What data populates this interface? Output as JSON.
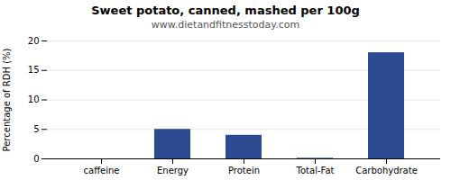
{
  "chart_data": {
    "type": "bar",
    "title": "Sweet potato, canned, mashed per 100g",
    "subtitle": "www.dietandfitnesstoday.com",
    "categories": [
      "caffeine",
      "Energy",
      "Protein",
      "Total-Fat",
      "Carbohydrate"
    ],
    "values": [
      0,
      5,
      4,
      0.1,
      18
    ],
    "color": "#2b4a8f",
    "ylabel": "Percentage of RDH (%)",
    "ylim": [
      0,
      20
    ],
    "yticks": [
      0,
      5,
      10,
      15,
      20
    ],
    "grid": true
  }
}
